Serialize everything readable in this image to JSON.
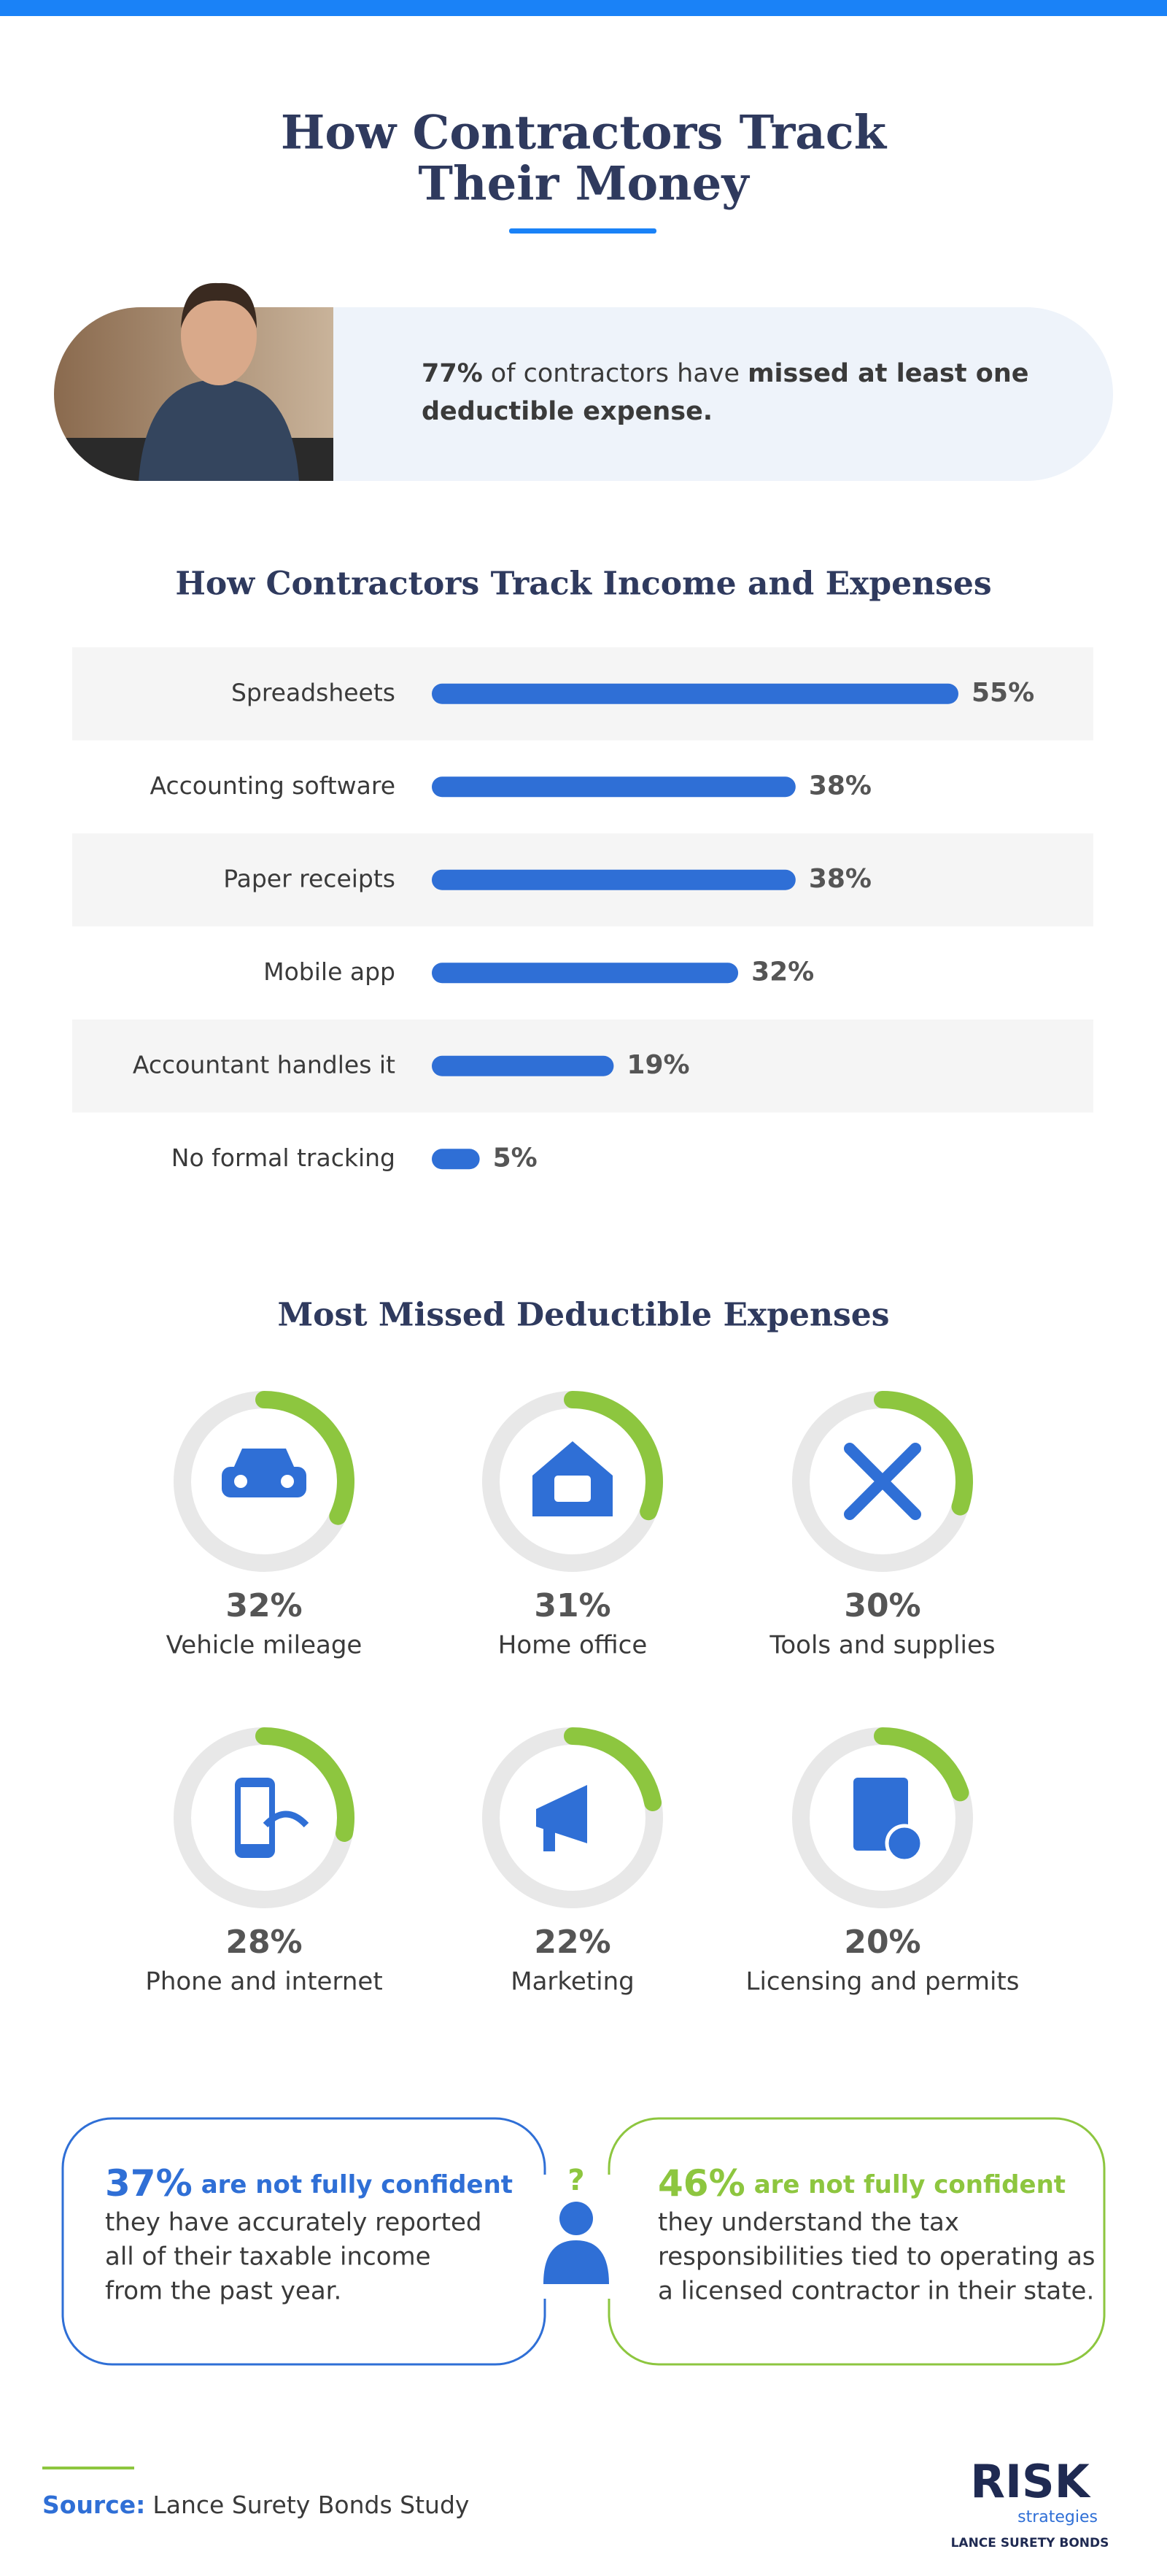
{
  "header": {
    "title_lines": [
      "How Contractors Track",
      "Their Money"
    ]
  },
  "stat": {
    "parts": [
      "77%",
      "of contractors have",
      "missed at least one",
      "deductible expense."
    ]
  },
  "chart_data": [
    {
      "type": "hbar",
      "title": "How Contractors Track Income and Expenses",
      "color": "#2f6fd6",
      "categories": [
        "Spreadsheets",
        "Accounting software",
        "Paper receipts",
        "Mobile app",
        "Accountant handles it",
        "No formal tracking"
      ],
      "values": [
        55,
        38,
        38,
        32,
        19,
        5
      ],
      "value_labels": [
        "55%",
        "38%",
        "38%",
        "32%",
        "19%",
        "5%"
      ]
    },
    {
      "type": "donut",
      "title": "Most Missed Deductible Expenses",
      "color": "#8dc63f",
      "categories": [
        "Vehicle mileage",
        "Home office",
        "Tools and supplies",
        "Phone and internet",
        "Marketing",
        "Licensing and permits"
      ],
      "values": [
        32,
        31,
        30,
        28,
        22,
        20
      ],
      "value_labels": [
        "32%",
        "31%",
        "30%",
        "28%",
        "22%",
        "20%"
      ]
    }
  ],
  "confidence": [
    {
      "percent": "37%",
      "headline": "are not fully confident",
      "lines": [
        "they have accurately reported",
        "all of their taxable income",
        "from the past year."
      ]
    },
    {
      "percent": "46%",
      "headline": "are not fully confident",
      "lines": [
        "they understand the tax",
        "responsibilities tied to operating as",
        "a licensed contractor in their state."
      ]
    }
  ],
  "source": {
    "label": "Source:",
    "text": "Lance Surety Bonds Study"
  },
  "logo": {
    "name": "RISK",
    "sub": "strategies",
    "tag": "LANCE SURETY BONDS"
  }
}
